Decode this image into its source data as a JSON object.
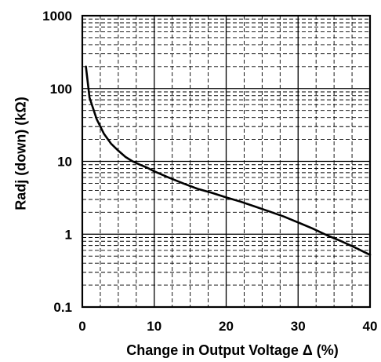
{
  "chart_data": {
    "type": "line",
    "title": "",
    "xlabel": "Change in Output Voltage Δ (%)",
    "ylabel": "Radj (down) (kΩ)",
    "x_scale": "linear",
    "y_scale": "log",
    "xlim": [
      0,
      40
    ],
    "ylim": [
      0.1,
      1000
    ],
    "x_ticks": [
      "0",
      "10",
      "20",
      "30",
      "40"
    ],
    "y_ticks": [
      "0.1",
      "1",
      "10",
      "100",
      "1000"
    ],
    "grid": true,
    "grid_style": "solid major lines, dashed minor lines",
    "legend": "none",
    "line_color": "#000000",
    "series": [
      {
        "x": [
          0.5,
          1,
          2,
          3,
          4,
          5,
          6,
          7,
          8,
          9,
          10,
          12,
          14,
          16,
          18,
          20,
          22,
          24,
          26,
          28,
          30,
          32,
          34,
          36,
          38,
          40
        ],
        "values": [
          200,
          75,
          38,
          24,
          17.5,
          14,
          11.5,
          10,
          9,
          8.2,
          7.3,
          6.0,
          5.0,
          4.2,
          3.7,
          3.2,
          2.8,
          2.4,
          2.05,
          1.75,
          1.45,
          1.2,
          0.97,
          0.8,
          0.65,
          0.52
        ]
      }
    ]
  }
}
